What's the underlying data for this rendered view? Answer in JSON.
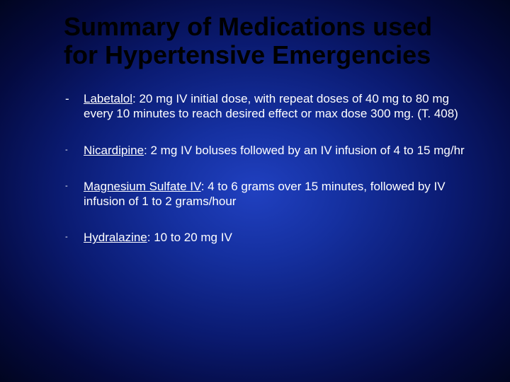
{
  "slide": {
    "title": "Summary of Medications used for Hypertensive Emergencies",
    "title_color": "#000000",
    "title_fontsize": 36,
    "body_color": "#ffffff",
    "body_fontsize": 17,
    "background_gradient": {
      "type": "radial",
      "stops": [
        "#2040c0",
        "#1530a0",
        "#0a1a70",
        "#040a40",
        "#010520"
      ]
    },
    "bullets": [
      {
        "dash_size": "normal",
        "name": "Labetalol",
        "text": ": 20 mg IV initial dose, with repeat doses of 40 mg to 80 mg every 10 minutes to reach desired effect or max dose 300 mg. (T. 408)"
      },
      {
        "dash_size": "small",
        "name": "Nicardipine",
        "text": ": 2 mg IV boluses followed by an IV infusion of 4 to 15 mg/hr"
      },
      {
        "dash_size": "small",
        "name": "Magnesium Sulfate IV",
        "text": ": 4 to 6 grams over 15 minutes, followed by IV infusion of 1 to 2 grams/hour"
      },
      {
        "dash_size": "small",
        "name": "Hydralazine",
        "text": ": 10 to 20 mg IV"
      }
    ]
  }
}
